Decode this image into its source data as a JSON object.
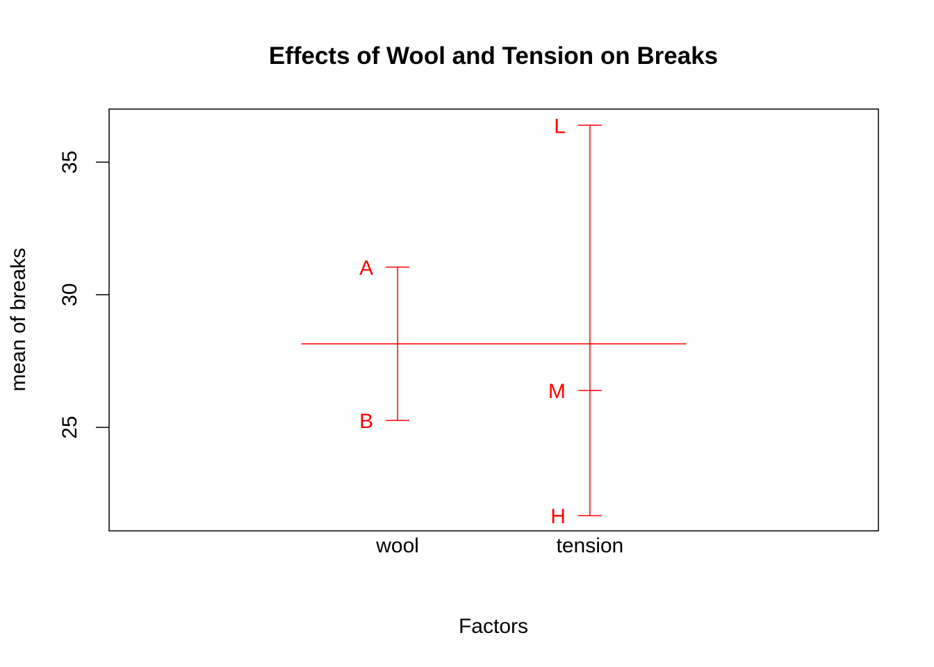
{
  "chart_data": {
    "type": "design",
    "title": "Effects of Wool and Tension on Breaks",
    "xlabel": "Factors",
    "ylabel": "mean of breaks",
    "ylim": [
      21.1,
      37.0
    ],
    "yticks": [
      25,
      30,
      35
    ],
    "grand_mean": 28.15,
    "factors": [
      {
        "name": "wool",
        "levels": [
          {
            "label": "A",
            "value": 31.04
          },
          {
            "label": "B",
            "value": 25.26
          }
        ]
      },
      {
        "name": "tension",
        "levels": [
          {
            "label": "L",
            "value": 36.39
          },
          {
            "label": "M",
            "value": 26.39
          },
          {
            "label": "H",
            "value": 21.67
          }
        ]
      }
    ],
    "grid": false,
    "colors": {
      "marks": "#ff0000",
      "axes": "#000000"
    }
  }
}
